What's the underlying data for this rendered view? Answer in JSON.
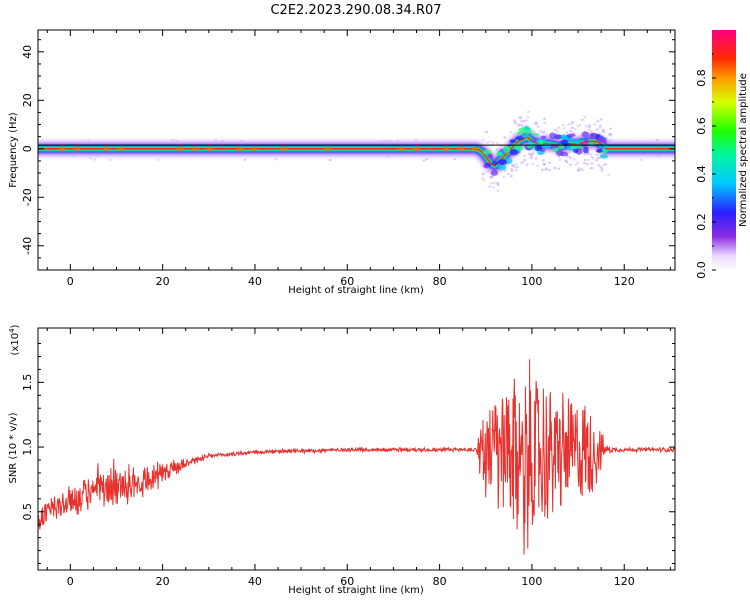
{
  "title": "C2E2.2023.290.08.34.R07",
  "chart_data": [
    {
      "type": "heatmap",
      "id": "spectrogram",
      "xlabel": "Height of straight line (km)",
      "ylabel": "Frequency (Hz)",
      "xlim": [
        -7,
        131
      ],
      "ylim": [
        -50,
        49
      ],
      "xticks": [
        0,
        20,
        40,
        60,
        80,
        100,
        120
      ],
      "yticks": [
        40,
        20,
        0,
        -20,
        -40
      ],
      "colorbar": {
        "label": "Normalized spectral amplitude",
        "ticks": [
          0.0,
          0.2,
          0.4,
          0.6,
          0.8
        ],
        "range": [
          0,
          1
        ],
        "colormap": "rainbow (white-violet-blue-cyan-green-yellow-red-magenta)"
      },
      "ridge": {
        "note": "dominant frequency near 0 Hz across all heights; disturbed region 89-116 km",
        "x": [
          -7,
          88,
          89,
          90,
          91,
          92,
          93,
          94,
          95,
          96,
          97,
          98,
          99,
          100,
          102,
          104,
          106,
          108,
          110,
          112,
          114,
          115,
          116,
          131
        ],
        "y": [
          0,
          0,
          -1,
          -3,
          -6,
          -7,
          -5,
          -3,
          -1,
          1,
          3,
          4,
          5,
          3,
          2,
          2,
          1,
          2,
          2,
          3,
          3,
          2,
          0,
          0
        ]
      },
      "horizontal_line_y": 1.5
    },
    {
      "type": "line",
      "id": "snr",
      "xlabel": "Height of straight line (km)",
      "ylabel": "SNR (10 * v/v)",
      "yscale_label": "(x10",
      "yscale_exp": "4",
      "yscale_close": ")",
      "xlim": [
        -7,
        131
      ],
      "ylim": [
        0.05,
        1.92
      ],
      "xticks": [
        0,
        20,
        40,
        60,
        80,
        100,
        120
      ],
      "yticks": [
        0.5,
        1.0,
        1.5
      ],
      "ytick_labels": [
        "0.5",
        "1.0",
        "1.5"
      ],
      "color": "#e8312d",
      "series": [
        {
          "envelope_x": [
            -7,
            -5,
            0,
            5,
            10,
            15,
            20,
            25,
            30,
            40,
            50,
            60,
            70,
            80,
            88,
            89,
            92,
            95,
            98,
            100,
            105,
            110,
            113,
            116,
            118,
            131
          ],
          "envelope_mean": [
            0.42,
            0.5,
            0.58,
            0.66,
            0.7,
            0.74,
            0.8,
            0.88,
            0.93,
            0.96,
            0.97,
            0.98,
            0.98,
            0.98,
            0.98,
            0.98,
            0.95,
            0.92,
            0.9,
            0.92,
            0.95,
            0.97,
            0.97,
            0.98,
            0.98,
            0.98
          ],
          "envelope_amp": [
            0.12,
            0.14,
            0.15,
            0.16,
            0.18,
            0.17,
            0.12,
            0.05,
            0.02,
            0.02,
            0.02,
            0.02,
            0.02,
            0.02,
            0.02,
            0.3,
            0.55,
            0.75,
            0.9,
            0.85,
            0.6,
            0.5,
            0.45,
            0.05,
            0.02,
            0.02
          ]
        }
      ]
    }
  ]
}
